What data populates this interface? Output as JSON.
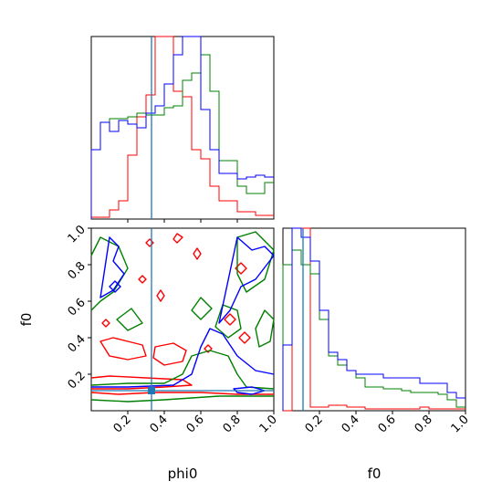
{
  "chart_data": {
    "type": "corner",
    "parameters": [
      "phi0",
      "f0"
    ],
    "truth": {
      "phi0": 0.33,
      "f0": 0.11,
      "color": "#1f77b4"
    },
    "series_colors": {
      "red": "#ff0000",
      "green": "#008000",
      "blue": "#0000ff"
    },
    "panels": {
      "phi0_hist": {
        "type": "step-histogram",
        "xlim": [
          0,
          1
        ],
        "bin_edges": [
          0,
          0.05,
          0.1,
          0.15,
          0.2,
          0.25,
          0.3,
          0.35,
          0.4,
          0.45,
          0.5,
          0.55,
          0.6,
          0.65,
          0.7,
          0.75,
          0.8,
          0.85,
          0.9,
          0.95,
          1.0
        ],
        "ylim": [
          0,
          100
        ],
        "series": [
          {
            "color": "red",
            "values": [
              1,
              1,
              5,
              10,
              35,
              56,
              68,
              100,
              100,
              70,
              67,
              38,
              33,
              18,
              10,
              10,
              4,
              4,
              2,
              2
            ]
          },
          {
            "color": "green",
            "values": [
              38,
              53,
              55,
              55,
              56,
              58,
              57,
              57,
              61,
              62,
              76,
              80,
              90,
              70,
              32,
              32,
              18,
              14,
              14,
              20
            ]
          },
          {
            "color": "blue",
            "values": [
              38,
              53,
              48,
              54,
              52,
              50,
              58,
              62,
              74,
              90,
              100,
              100,
              60,
              38,
              25,
              25,
              22,
              23,
              24,
              23
            ]
          }
        ],
        "xtick_values": [
          0.2,
          0.4,
          0.6,
          0.8
        ]
      },
      "f0_hist": {
        "type": "step-histogram",
        "xlim": [
          0,
          1
        ],
        "bin_edges": [
          0,
          0.05,
          0.1,
          0.15,
          0.2,
          0.25,
          0.3,
          0.35,
          0.4,
          0.45,
          0.5,
          0.55,
          0.6,
          0.65,
          0.7,
          0.75,
          0.8,
          0.85,
          0.9,
          0.95,
          1.0
        ],
        "ylim": [
          0,
          100
        ],
        "series": [
          {
            "color": "red",
            "values": [
              0,
              100,
              100,
              2,
              2,
              3,
              3,
              2,
              2,
              1,
              1,
              1,
              1,
              1,
              1,
              2,
              1,
              1,
              1,
              1
            ]
          },
          {
            "color": "green",
            "values": [
              80,
              88,
              80,
              75,
              50,
              30,
              25,
              22,
              18,
              13,
              13,
              12,
              12,
              11,
              10,
              10,
              10,
              9,
              6,
              2
            ]
          },
          {
            "color": "blue",
            "values": [
              36,
              100,
              95,
              82,
              55,
              32,
              28,
              22,
              20,
              20,
              20,
              18,
              18,
              18,
              18,
              15,
              15,
              15,
              10,
              7
            ]
          }
        ],
        "xtick_labels": [
          "0.2",
          "0.4",
          "0.6",
          "0.8",
          "1.0"
        ],
        "xtick_values": [
          0.2,
          0.4,
          0.6,
          0.8,
          1.0
        ]
      },
      "joint": {
        "type": "contour",
        "xlim": [
          0,
          1
        ],
        "ylim": [
          0,
          1
        ],
        "xtick_labels": [
          "0.2",
          "0.4",
          "0.6",
          "0.8",
          "1.0"
        ],
        "xtick_values": [
          0.2,
          0.4,
          0.6,
          0.8,
          1.0
        ],
        "ytick_labels": [
          "0.2",
          "0.4",
          "0.6",
          "0.8",
          "1.0"
        ],
        "ytick_values": [
          0.2,
          0.4,
          0.6,
          0.8,
          1.0
        ],
        "contours": [
          {
            "color": "red",
            "points": [
              [
                0,
                0.18
              ],
              [
                0.1,
                0.19
              ],
              [
                0.3,
                0.18
              ],
              [
                0.5,
                0.17
              ],
              [
                0.55,
                0.14
              ],
              [
                0.4,
                0.13
              ],
              [
                0.2,
                0.12
              ],
              [
                0,
                0.12
              ]
            ]
          },
          {
            "color": "red",
            "points": [
              [
                0,
                0.1
              ],
              [
                0.15,
                0.09
              ],
              [
                0.35,
                0.1
              ],
              [
                0.6,
                0.1
              ],
              [
                0.8,
                0.09
              ],
              [
                1,
                0.09
              ]
            ]
          },
          {
            "color": "red",
            "points": [
              [
                0.05,
                0.38
              ],
              [
                0.12,
                0.4
              ],
              [
                0.2,
                0.38
              ],
              [
                0.28,
                0.36
              ],
              [
                0.3,
                0.3
              ],
              [
                0.2,
                0.28
              ],
              [
                0.1,
                0.3
              ]
            ]
          },
          {
            "color": "red",
            "points": [
              [
                0.35,
                0.35
              ],
              [
                0.45,
                0.37
              ],
              [
                0.52,
                0.33
              ],
              [
                0.5,
                0.27
              ],
              [
                0.4,
                0.25
              ],
              [
                0.34,
                0.29
              ]
            ]
          },
          {
            "color": "red",
            "points": [
              [
                0.73,
                0.5
              ],
              [
                0.76,
                0.53
              ],
              [
                0.79,
                0.5
              ],
              [
                0.76,
                0.47
              ]
            ]
          },
          {
            "color": "red",
            "points": [
              [
                0.81,
                0.4
              ],
              [
                0.84,
                0.43
              ],
              [
                0.87,
                0.4
              ],
              [
                0.84,
                0.37
              ]
            ]
          },
          {
            "color": "red",
            "points": [
              [
                0.79,
                0.78
              ],
              [
                0.82,
                0.81
              ],
              [
                0.85,
                0.78
              ],
              [
                0.82,
                0.75
              ]
            ]
          },
          {
            "color": "red",
            "points": [
              [
                0.56,
                0.86
              ],
              [
                0.58,
                0.89
              ],
              [
                0.6,
                0.86
              ],
              [
                0.58,
                0.83
              ]
            ]
          },
          {
            "color": "red",
            "points": [
              [
                0.3,
                0.92
              ],
              [
                0.32,
                0.94
              ],
              [
                0.34,
                0.92
              ],
              [
                0.32,
                0.9
              ]
            ]
          },
          {
            "color": "red",
            "points": [
              [
                0.36,
                0.63
              ],
              [
                0.38,
                0.66
              ],
              [
                0.4,
                0.63
              ],
              [
                0.38,
                0.6
              ]
            ]
          },
          {
            "color": "red",
            "points": [
              [
                0.26,
                0.72
              ],
              [
                0.28,
                0.74
              ],
              [
                0.3,
                0.72
              ],
              [
                0.28,
                0.7
              ]
            ]
          },
          {
            "color": "red",
            "points": [
              [
                0.06,
                0.48
              ],
              [
                0.08,
                0.5
              ],
              [
                0.1,
                0.48
              ],
              [
                0.08,
                0.46
              ]
            ]
          },
          {
            "color": "red",
            "points": [
              [
                0.62,
                0.34
              ],
              [
                0.64,
                0.36
              ],
              [
                0.66,
                0.34
              ],
              [
                0.64,
                0.32
              ]
            ]
          },
          {
            "color": "red",
            "points": [
              [
                0.45,
                0.94
              ],
              [
                0.47,
                0.97
              ],
              [
                0.5,
                0.95
              ],
              [
                0.47,
                0.92
              ]
            ]
          },
          {
            "color": "green",
            "points": [
              [
                0,
                0.14
              ],
              [
                0.2,
                0.15
              ],
              [
                0.4,
                0.15
              ],
              [
                0.5,
                0.2
              ],
              [
                0.55,
                0.3
              ],
              [
                0.65,
                0.33
              ],
              [
                0.75,
                0.3
              ],
              [
                0.8,
                0.2
              ],
              [
                0.85,
                0.13
              ],
              [
                1,
                0.12
              ]
            ]
          },
          {
            "color": "green",
            "points": [
              [
                0,
                0.06
              ],
              [
                0.2,
                0.05
              ],
              [
                0.4,
                0.06
              ],
              [
                0.7,
                0.08
              ],
              [
                1,
                0.08
              ]
            ]
          },
          {
            "color": "green",
            "points": [
              [
                0,
                0.85
              ],
              [
                0.05,
                0.95
              ],
              [
                0.15,
                0.9
              ],
              [
                0.2,
                0.78
              ],
              [
                0.12,
                0.65
              ],
              [
                0.05,
                0.6
              ],
              [
                0,
                0.55
              ]
            ]
          },
          {
            "color": "green",
            "points": [
              [
                0.8,
                0.95
              ],
              [
                0.9,
                0.98
              ],
              [
                1,
                0.88
              ],
              [
                0.95,
                0.72
              ],
              [
                0.85,
                0.65
              ],
              [
                0.8,
                0.75
              ]
            ]
          },
          {
            "color": "green",
            "points": [
              [
                0.68,
                0.46
              ],
              [
                0.72,
                0.58
              ],
              [
                0.8,
                0.55
              ],
              [
                0.82,
                0.45
              ],
              [
                0.75,
                0.4
              ]
            ]
          },
          {
            "color": "green",
            "points": [
              [
                0.55,
                0.55
              ],
              [
                0.6,
                0.62
              ],
              [
                0.66,
                0.56
              ],
              [
                0.6,
                0.5
              ]
            ]
          },
          {
            "color": "green",
            "points": [
              [
                0.9,
                0.45
              ],
              [
                0.95,
                0.55
              ],
              [
                1,
                0.5
              ],
              [
                0.98,
                0.38
              ],
              [
                0.92,
                0.35
              ]
            ]
          },
          {
            "color": "green",
            "points": [
              [
                0.14,
                0.5
              ],
              [
                0.22,
                0.56
              ],
              [
                0.28,
                0.48
              ],
              [
                0.2,
                0.44
              ]
            ]
          },
          {
            "color": "blue",
            "points": [
              [
                0,
                0.13
              ],
              [
                0.2,
                0.13
              ],
              [
                0.45,
                0.14
              ],
              [
                0.55,
                0.2
              ],
              [
                0.6,
                0.35
              ],
              [
                0.65,
                0.45
              ],
              [
                0.72,
                0.42
              ],
              [
                0.8,
                0.3
              ],
              [
                0.9,
                0.22
              ],
              [
                1,
                0.2
              ]
            ]
          },
          {
            "color": "blue",
            "points": [
              [
                0.8,
                0.95
              ],
              [
                0.88,
                0.88
              ],
              [
                0.95,
                0.9
              ],
              [
                1,
                0.85
              ],
              [
                0.9,
                0.72
              ],
              [
                0.82,
                0.68
              ],
              [
                0.76,
                0.55
              ],
              [
                0.7,
                0.48
              ]
            ]
          },
          {
            "color": "blue",
            "points": [
              [
                0.1,
                0.95
              ],
              [
                0.15,
                0.9
              ],
              [
                0.12,
                0.82
              ],
              [
                0.18,
                0.75
              ],
              [
                0.12,
                0.66
              ],
              [
                0.05,
                0.62
              ]
            ]
          },
          {
            "color": "blue",
            "points": [
              [
                0.78,
                0.12
              ],
              [
                0.88,
                0.13
              ],
              [
                0.95,
                0.11
              ],
              [
                0.88,
                0.09
              ],
              [
                0.8,
                0.1
              ]
            ]
          },
          {
            "color": "blue",
            "points": [
              [
                0.1,
                0.68
              ],
              [
                0.13,
                0.71
              ],
              [
                0.16,
                0.68
              ],
              [
                0.13,
                0.65
              ]
            ]
          }
        ]
      }
    },
    "xlabel": "phi0",
    "xlabel2": "f0",
    "ylabel": "f0",
    "grid": false
  }
}
